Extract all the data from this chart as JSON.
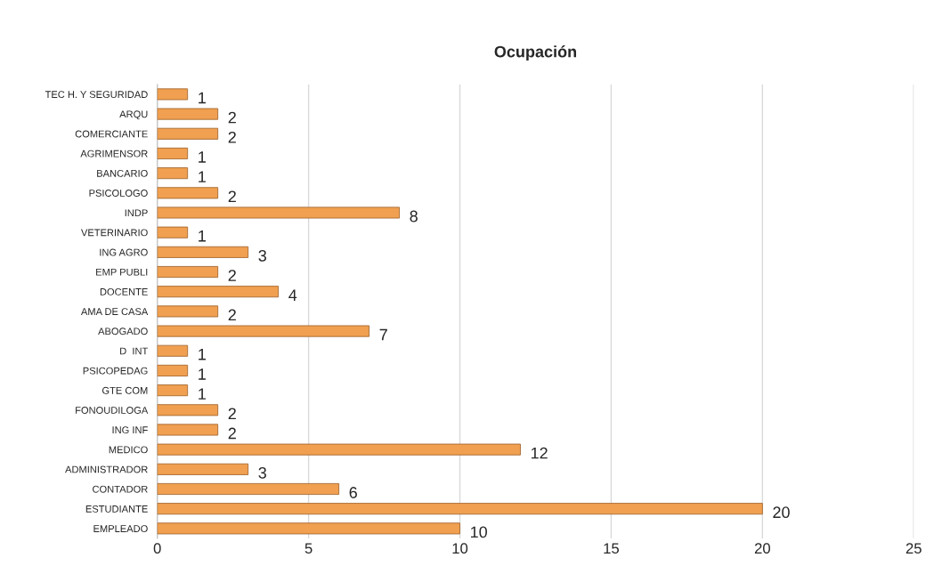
{
  "chart_data": {
    "type": "bar",
    "orientation": "horizontal",
    "title": "Ocupación",
    "categories": [
      "TEC H. Y SEGURIDAD",
      "ARQU",
      "COMERCIANTE",
      "AGRIMENSOR",
      "BANCARIO",
      "PSICOLOGO",
      "INDP",
      "VETERINARIO",
      "ING AGRO",
      "EMP PUBLI",
      "DOCENTE",
      "AMA DE CASA",
      "ABOGADO",
      "D  INT",
      "PSICOPEDAG",
      "GTE COM",
      "FONOUDILOGA",
      "ING INF",
      "MEDICO",
      "ADMINISTRADOR",
      "CONTADOR",
      "ESTUDIANTE",
      "EMPLEADO"
    ],
    "values": [
      1,
      2,
      2,
      1,
      1,
      2,
      8,
      1,
      3,
      2,
      4,
      2,
      7,
      1,
      1,
      1,
      2,
      2,
      12,
      3,
      6,
      20,
      10
    ],
    "color": "#f0a050",
    "xlim": [
      0,
      25
    ],
    "xticks": [
      0,
      5,
      10,
      15,
      20,
      25
    ],
    "grid": "x",
    "data_labels": true
  }
}
